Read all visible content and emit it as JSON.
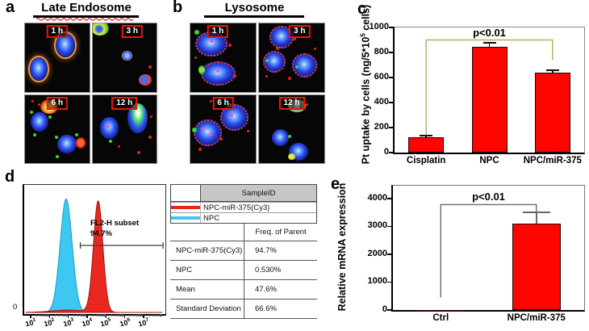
{
  "panels": {
    "a": {
      "letter": "a",
      "title": "Late Endosome",
      "times": [
        "1 h",
        "3 h",
        "6 h",
        "12 h"
      ]
    },
    "b": {
      "letter": "b",
      "title": "Lysosome",
      "times": [
        "1 h",
        "3 h",
        "6 h",
        "12 h"
      ]
    },
    "c": {
      "letter": "c",
      "ylabel_pre": "Pt uptake by cells (ng/5*10",
      "ylabel_sup": "5",
      "ylabel_post": " cells)"
    },
    "d": {
      "letter": "d",
      "y_zero": "0",
      "gate_label": "FL2-H subset",
      "gate_value": "94.7%",
      "legend": {
        "header": "SampleID",
        "rows": [
          {
            "label": "NPC-miR-375(Cy3)",
            "color": "#e8271f"
          },
          {
            "label": "NPC",
            "color": "#3cc8f0"
          }
        ]
      },
      "stats": {
        "col_header": "Freq. of Parent",
        "rows": [
          {
            "label": "NPC-miR-375(Cy3)",
            "value": "94.7%"
          },
          {
            "label": "NPC",
            "value": "0.530%"
          },
          {
            "label": "Mean",
            "value": "47.6%"
          },
          {
            "label": "Standard Deviation",
            "value": "66.6%"
          }
        ]
      }
    },
    "e": {
      "letter": "e",
      "ylabel": "Relative mRNA expression"
    }
  },
  "chart_data": [
    {
      "panel": "c",
      "type": "bar",
      "categories": [
        "Cisplatin",
        "NPC",
        "NPC/miR-375"
      ],
      "values": [
        120,
        845,
        640
      ],
      "errors": [
        18,
        30,
        18
      ],
      "ylabel": "Pt uptake by cells (ng/5*10^5 cells)",
      "ylim": [
        0,
        1000
      ],
      "ylim_display": 1000,
      "yticks": [
        0,
        200,
        400,
        600,
        800,
        1000
      ],
      "bar_color": "#fe0500",
      "significance": {
        "label": "p<0.01",
        "bar_y": 900,
        "left_drop_to": 140,
        "right_drop_to": 740,
        "color": "#b3ae5e"
      }
    },
    {
      "panel": "d",
      "type": "histogram",
      "x_decades": [
        1,
        2,
        3,
        4,
        5,
        6,
        7
      ],
      "series": [
        {
          "name": "NPC-miR-375(Cy3)",
          "color": "#e8271f",
          "stroke": "#a01510",
          "peak_log": 4.5,
          "sigma_log": 0.25,
          "height": 0.93,
          "tail": {
            "center": 2.9,
            "sigma": 0.9,
            "height": 0.02
          }
        },
        {
          "name": "NPC",
          "color": "#3cc8f0",
          "stroke": "#1a9cc9",
          "peak_log": 2.8,
          "sigma_log": 0.32,
          "height": 0.95
        }
      ],
      "gate": {
        "label": "FL2-H subset",
        "percent": "94.7%",
        "from_log": 3.55,
        "to_log": 7.95
      }
    },
    {
      "panel": "e",
      "type": "bar",
      "categories": [
        "Ctrl",
        "NPC/miR-375"
      ],
      "values": [
        5,
        3100
      ],
      "errors": [
        0,
        400
      ],
      "ylabel": "Relative mRNA expression",
      "ylim": [
        0,
        4000
      ],
      "ylim_display": 4460,
      "yticks": [
        0,
        1000,
        2000,
        3000,
        4000
      ],
      "bar_color": "#fe0500",
      "significance": {
        "label": "p<0.01",
        "bar_y": 3780,
        "left_drop_to": 450,
        "right_drop_to": 3100,
        "color": "#6b6b6b"
      }
    }
  ]
}
